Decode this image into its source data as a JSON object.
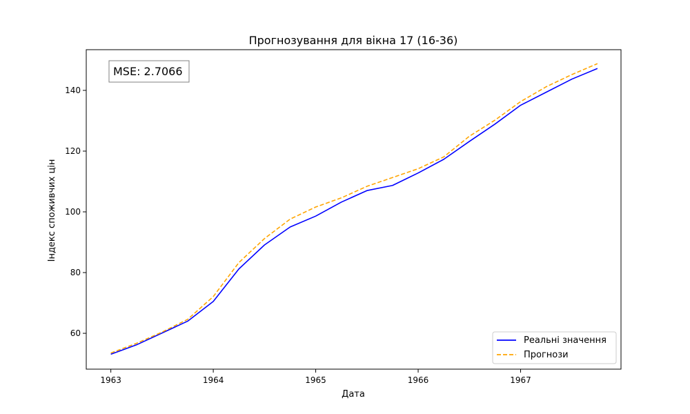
{
  "chart_data": {
    "type": "line",
    "title": "Прогнозування для вікна 17 (16-36)",
    "xlabel": "Дата",
    "ylabel": "Індекс споживчих цін",
    "annotation": "MSE: 2.7066",
    "legend_position": "lower-right",
    "grid": false,
    "xlim": [
      1962.76,
      1967.98
    ],
    "ylim": [
      48.2,
      153.4
    ],
    "xticks": [
      1963,
      1964,
      1965,
      1966,
      1967
    ],
    "xtick_labels": [
      "1963",
      "1964",
      "1965",
      "1966",
      "1967"
    ],
    "yticks": [
      60,
      80,
      100,
      120,
      140
    ],
    "x": [
      1963.0,
      1963.25,
      1963.5,
      1963.75,
      1964.0,
      1964.25,
      1964.5,
      1964.75,
      1965.0,
      1965.25,
      1965.5,
      1965.75,
      1966.0,
      1966.25,
      1966.5,
      1966.75,
      1967.0,
      1967.25,
      1967.5,
      1967.75
    ],
    "series": [
      {
        "name": "Реальні значення",
        "color": "#0000ff",
        "dash": "solid",
        "values": [
          53.1,
          56.2,
          60.1,
          64.0,
          70.5,
          81.2,
          89.1,
          95.0,
          98.6,
          103.2,
          107.0,
          108.7,
          112.8,
          117.3,
          123.2,
          128.9,
          135.1,
          139.4,
          143.7,
          147.2
        ]
      },
      {
        "name": "Прогнози",
        "color": "#ffa500",
        "dash": "dashed",
        "values": [
          53.5,
          56.7,
          60.4,
          64.6,
          72.1,
          83.3,
          91.2,
          97.6,
          101.6,
          104.6,
          108.4,
          111.3,
          114.2,
          118.1,
          124.9,
          130.2,
          136.3,
          141.2,
          145.2,
          148.8
        ]
      }
    ]
  }
}
